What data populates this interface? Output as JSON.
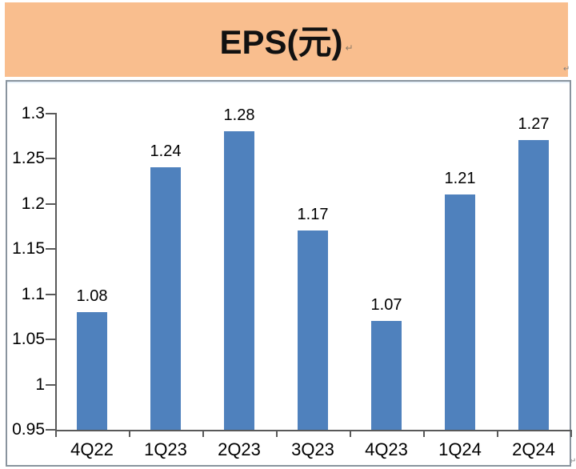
{
  "header": {
    "title": "EPS(元)",
    "paragraph_mark": "↵",
    "banner_color": "#F9BE8E"
  },
  "page_marks": {
    "banner_anchor": "↵",
    "page_anchor": "↵"
  },
  "chart_data": {
    "type": "bar",
    "title": "EPS(元)",
    "categories": [
      "4Q22",
      "1Q23",
      "2Q23",
      "3Q23",
      "4Q23",
      "1Q24",
      "2Q24"
    ],
    "values": [
      1.08,
      1.24,
      1.28,
      1.17,
      1.07,
      1.21,
      1.27
    ],
    "data_labels": [
      "1.08",
      "1.24",
      "1.28",
      "1.17",
      "1.07",
      "1.21",
      "1.27"
    ],
    "xlabel": "",
    "ylabel": "",
    "ylim": [
      0.95,
      1.3
    ],
    "ytick_step": 0.05,
    "ytick_labels": [
      "0.95",
      "1",
      "1.05",
      "1.1",
      "1.15",
      "1.2",
      "1.25",
      "1.3"
    ],
    "grid": "off",
    "legend": "none",
    "bar_color": "#4F81BD",
    "axis_color": "#595959",
    "frame_border_color": "#89949E",
    "label_color": "#000000"
  }
}
